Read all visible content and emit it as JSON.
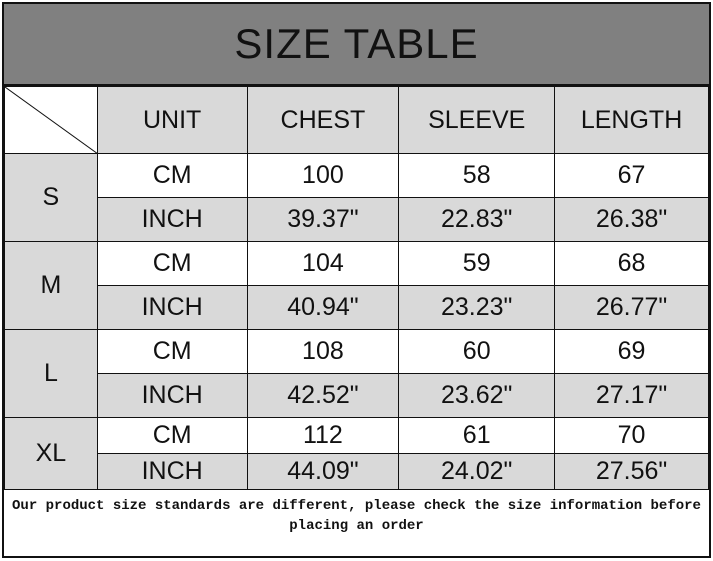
{
  "title": "SIZE TABLE",
  "headers": [
    "UNIT",
    "CHEST",
    "SLEEVE",
    "LENGTH"
  ],
  "sizes": [
    {
      "size": "S",
      "rows": [
        {
          "unit": "CM",
          "chest": "100",
          "sleeve": "58",
          "length": "67"
        },
        {
          "unit": "INCH",
          "chest": "39.37\"",
          "sleeve": "22.83\"",
          "length": "26.38\""
        }
      ]
    },
    {
      "size": "M",
      "rows": [
        {
          "unit": "CM",
          "chest": "104",
          "sleeve": "59",
          "length": "68"
        },
        {
          "unit": "INCH",
          "chest": "40.94\"",
          "sleeve": "23.23\"",
          "length": "26.77\""
        }
      ]
    },
    {
      "size": "L",
      "rows": [
        {
          "unit": "CM",
          "chest": "108",
          "sleeve": "60",
          "length": "69"
        },
        {
          "unit": "INCH",
          "chest": "42.52\"",
          "sleeve": "23.62\"",
          "length": "27.17\""
        }
      ]
    },
    {
      "size": "XL",
      "rows": [
        {
          "unit": "CM",
          "chest": "112",
          "sleeve": "61",
          "length": "70"
        },
        {
          "unit": "INCH",
          "chest": "44.09\"",
          "sleeve": "24.02\"",
          "length": "27.56\""
        }
      ]
    }
  ],
  "note": "Our product size standards are different, please check the size information before placing an order",
  "colors": {
    "title_bg": "#808080",
    "cell_gray": "#d9d9d9",
    "cell_white": "#ffffff"
  }
}
